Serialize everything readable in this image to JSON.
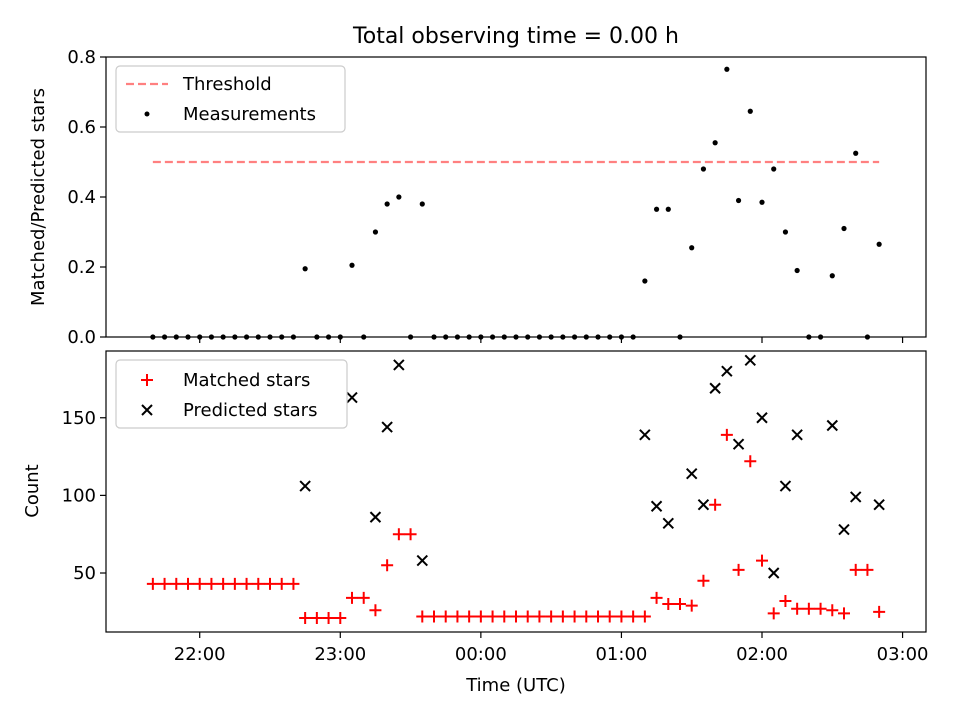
{
  "chart_data": [
    {
      "type": "scatter",
      "title": "Total observing time = 0.00 h",
      "xlabel": "",
      "ylabel": "Matched/Predicted stars",
      "ylim": [
        0,
        0.8
      ],
      "yticks": [
        "0.0",
        "0.2",
        "0.4",
        "0.6",
        "0.8"
      ],
      "legend_position": "top-left",
      "threshold": {
        "name": "Threshold",
        "value": 0.5,
        "x_start": "21:40",
        "x_end": "02:50",
        "color": "#ff8080"
      },
      "series": [
        {
          "name": "Measurements",
          "color": "#000000",
          "points": [
            [
              "21:40",
              0
            ],
            [
              "21:45",
              0
            ],
            [
              "21:50",
              0
            ],
            [
              "21:55",
              0
            ],
            [
              "22:00",
              0
            ],
            [
              "22:05",
              0
            ],
            [
              "22:10",
              0
            ],
            [
              "22:15",
              0
            ],
            [
              "22:20",
              0
            ],
            [
              "22:25",
              0
            ],
            [
              "22:30",
              0
            ],
            [
              "22:35",
              0
            ],
            [
              "22:40",
              0
            ],
            [
              "22:45",
              0.195
            ],
            [
              "22:50",
              0
            ],
            [
              "22:55",
              0
            ],
            [
              "23:00",
              0
            ],
            [
              "23:05",
              0.205
            ],
            [
              "23:10",
              0
            ],
            [
              "23:15",
              0.3
            ],
            [
              "23:20",
              0.38
            ],
            [
              "23:25",
              0.4
            ],
            [
              "23:30",
              0
            ],
            [
              "23:35",
              0.38
            ],
            [
              "23:40",
              0
            ],
            [
              "23:45",
              0
            ],
            [
              "23:50",
              0
            ],
            [
              "23:55",
              0
            ],
            [
              "00:00",
              0
            ],
            [
              "00:05",
              0
            ],
            [
              "00:10",
              0
            ],
            [
              "00:15",
              0
            ],
            [
              "00:20",
              0
            ],
            [
              "00:25",
              0
            ],
            [
              "00:30",
              0
            ],
            [
              "00:35",
              0
            ],
            [
              "00:40",
              0
            ],
            [
              "00:45",
              0
            ],
            [
              "00:50",
              0
            ],
            [
              "00:55",
              0
            ],
            [
              "01:00",
              0
            ],
            [
              "01:05",
              0
            ],
            [
              "01:10",
              0.16
            ],
            [
              "01:15",
              0.365
            ],
            [
              "01:20",
              0.365
            ],
            [
              "01:25",
              0
            ],
            [
              "01:30",
              0.255
            ],
            [
              "01:35",
              0.48
            ],
            [
              "01:40",
              0.555
            ],
            [
              "01:45",
              0.765
            ],
            [
              "01:50",
              0.39
            ],
            [
              "01:55",
              0.645
            ],
            [
              "02:00",
              0.385
            ],
            [
              "02:05",
              0.48
            ],
            [
              "02:10",
              0.3
            ],
            [
              "02:15",
              0.19
            ],
            [
              "02:20",
              0
            ],
            [
              "02:25",
              0
            ],
            [
              "02:30",
              0.175
            ],
            [
              "02:35",
              0.31
            ],
            [
              "02:40",
              0.525
            ],
            [
              "02:45",
              0
            ],
            [
              "02:50",
              0.265
            ]
          ]
        }
      ]
    },
    {
      "type": "scatter",
      "title": "",
      "xlabel": "Time (UTC)",
      "ylabel": "Count",
      "ylim": [
        12,
        193
      ],
      "yticks": [
        "50",
        "100",
        "150"
      ],
      "legend_position": "top-left",
      "series": [
        {
          "name": "Matched stars",
          "color": "#ff0000",
          "marker": "plus",
          "points": [
            [
              "21:40",
              43
            ],
            [
              "21:45",
              43
            ],
            [
              "21:50",
              43
            ],
            [
              "21:55",
              43
            ],
            [
              "22:00",
              43
            ],
            [
              "22:05",
              43
            ],
            [
              "22:10",
              43
            ],
            [
              "22:15",
              43
            ],
            [
              "22:20",
              43
            ],
            [
              "22:25",
              43
            ],
            [
              "22:30",
              43
            ],
            [
              "22:35",
              43
            ],
            [
              "22:40",
              43
            ],
            [
              "22:45",
              21
            ],
            [
              "22:50",
              21
            ],
            [
              "22:55",
              21
            ],
            [
              "23:00",
              21
            ],
            [
              "23:05",
              34
            ],
            [
              "23:10",
              34
            ],
            [
              "23:15",
              26
            ],
            [
              "23:20",
              55
            ],
            [
              "23:25",
              75
            ],
            [
              "23:30",
              75
            ],
            [
              "23:35",
              22
            ],
            [
              "23:40",
              22
            ],
            [
              "23:45",
              22
            ],
            [
              "23:50",
              22
            ],
            [
              "23:55",
              22
            ],
            [
              "00:00",
              22
            ],
            [
              "00:05",
              22
            ],
            [
              "00:10",
              22
            ],
            [
              "00:15",
              22
            ],
            [
              "00:20",
              22
            ],
            [
              "00:25",
              22
            ],
            [
              "00:30",
              22
            ],
            [
              "00:35",
              22
            ],
            [
              "00:40",
              22
            ],
            [
              "00:45",
              22
            ],
            [
              "00:50",
              22
            ],
            [
              "00:55",
              22
            ],
            [
              "01:00",
              22
            ],
            [
              "01:05",
              22
            ],
            [
              "01:10",
              22
            ],
            [
              "01:15",
              34
            ],
            [
              "01:20",
              30
            ],
            [
              "01:25",
              30
            ],
            [
              "01:30",
              29
            ],
            [
              "01:35",
              45
            ],
            [
              "01:40",
              94
            ],
            [
              "01:45",
              139
            ],
            [
              "01:50",
              52
            ],
            [
              "01:55",
              122
            ],
            [
              "02:00",
              58
            ],
            [
              "02:05",
              24
            ],
            [
              "02:10",
              32
            ],
            [
              "02:15",
              27
            ],
            [
              "02:20",
              27
            ],
            [
              "02:25",
              27
            ],
            [
              "02:30",
              26
            ],
            [
              "02:35",
              24
            ],
            [
              "02:40",
              52
            ],
            [
              "02:45",
              52
            ],
            [
              "02:50",
              25
            ]
          ]
        },
        {
          "name": "Predicted stars",
          "color": "#000000",
          "marker": "x",
          "points": [
            [
              "22:45",
              106
            ],
            [
              "23:05",
              163
            ],
            [
              "23:15",
              86
            ],
            [
              "23:20",
              144
            ],
            [
              "23:25",
              184
            ],
            [
              "23:35",
              58
            ],
            [
              "01:10",
              139
            ],
            [
              "01:15",
              93
            ],
            [
              "01:20",
              82
            ],
            [
              "01:30",
              114
            ],
            [
              "01:35",
              94
            ],
            [
              "01:40",
              169
            ],
            [
              "01:45",
              180
            ],
            [
              "01:50",
              133
            ],
            [
              "01:55",
              187
            ],
            [
              "02:00",
              150
            ],
            [
              "02:05",
              50
            ],
            [
              "02:10",
              106
            ],
            [
              "02:15",
              139
            ],
            [
              "02:30",
              145
            ],
            [
              "02:35",
              78
            ],
            [
              "02:40",
              99
            ],
            [
              "02:50",
              94
            ]
          ]
        }
      ]
    }
  ],
  "x_axis": {
    "start": "21:20",
    "end": "03:10",
    "ticks": [
      "22:00",
      "23:00",
      "00:00",
      "01:00",
      "02:00",
      "03:00"
    ]
  }
}
